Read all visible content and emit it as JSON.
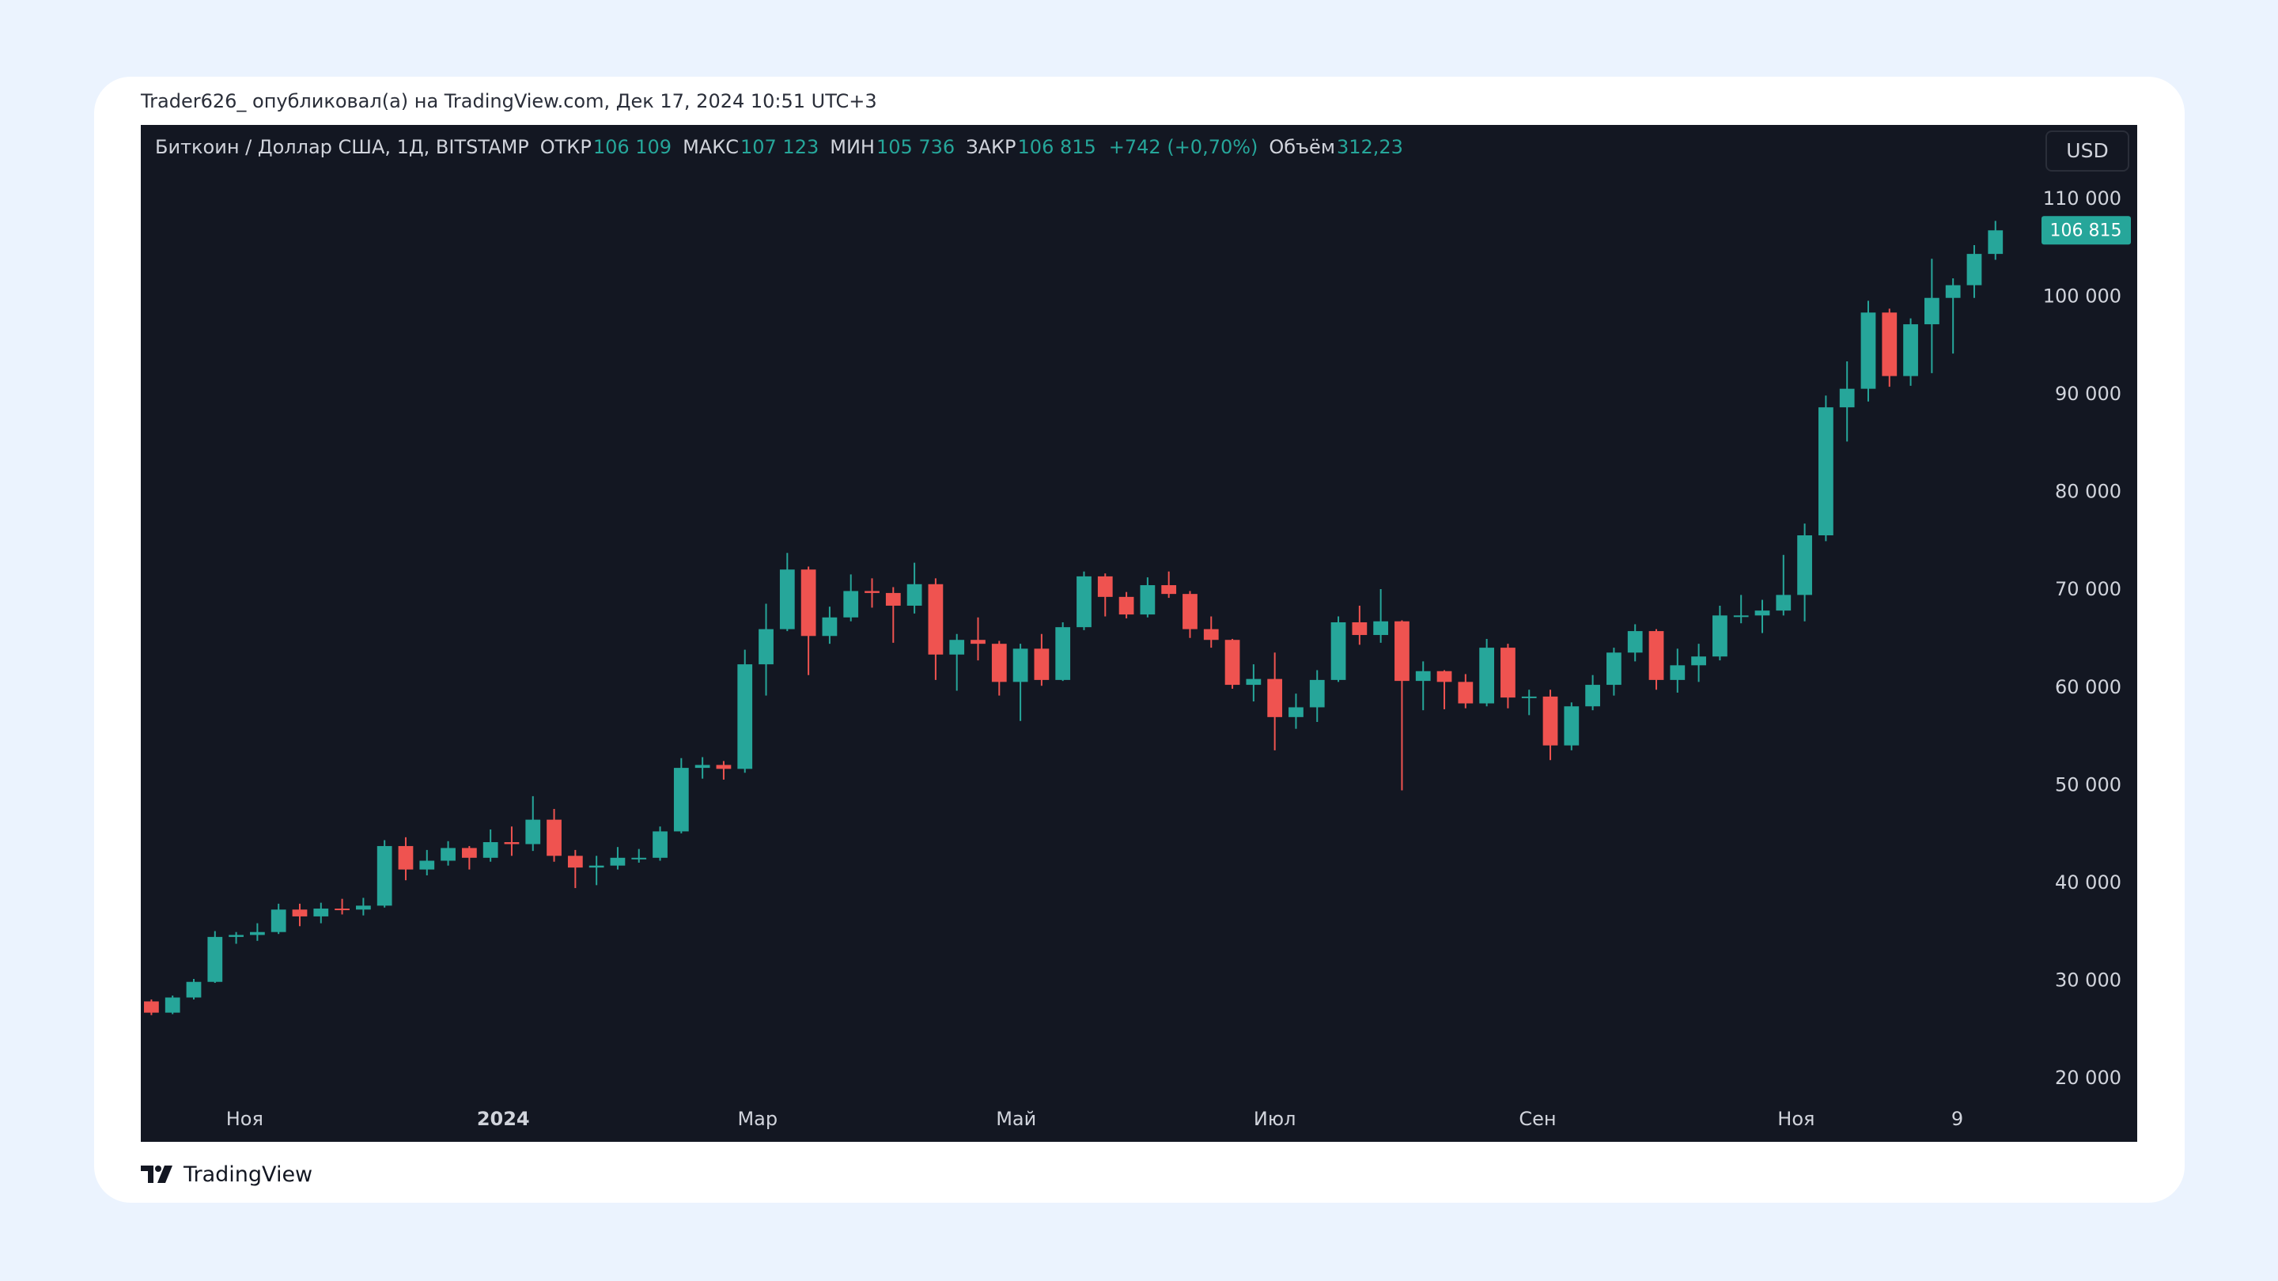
{
  "header": {
    "byline": "Trader626_ опубликовал(а) на TradingView.com, Дек 17, 2024 10:51 UTC+3"
  },
  "chart_data": {
    "type": "candlestick",
    "symbol": "Биткоин / Доллар США, 1Д, BITSTAMP",
    "legend_items": [
      {
        "label": "ОТКР",
        "value": "106 109"
      },
      {
        "label": "МАКС",
        "value": "107 123"
      },
      {
        "label": "МИН",
        "value": "105 736"
      },
      {
        "label": "ЗАКР",
        "value": "106 815"
      }
    ],
    "change": "+742 (+0,70%)",
    "volume": {
      "label": "Объём",
      "value": "312,23"
    },
    "currency": "USD",
    "up_color": "#26a69a",
    "down_color": "#ef5350",
    "open": [
      27900,
      26750,
      28300,
      29900,
      34500,
      34700,
      35000,
      37300,
      36600,
      37400,
      37300,
      37700,
      43800,
      41400,
      42300,
      43600,
      42600,
      44200,
      44000,
      46500,
      42800,
      41600,
      41800,
      42600,
      42600,
      45300,
      51800,
      52100,
      51700,
      62400,
      66000,
      72100,
      65300,
      67200,
      69900,
      69700,
      68400,
      70600,
      63400,
      64900,
      64500,
      60600,
      64000,
      60800,
      66200,
      71400,
      69300,
      67500,
      70500,
      69600,
      66000,
      64900,
      60300,
      60900,
      57000,
      58000,
      60800,
      66700,
      65400,
      66800,
      60700,
      61700,
      60600,
      58400,
      64100,
      59000,
      59100,
      54100,
      58100,
      60300,
      63600,
      65800,
      60800,
      62300,
      63200,
      67400,
      67400,
      67900,
      69500,
      75600,
      88700,
      90600,
      98400,
      91900,
      97200,
      99900,
      101200,
      104400
    ],
    "high": [
      28100,
      28500,
      30200,
      35100,
      35000,
      35900,
      37900,
      37900,
      38000,
      38400,
      38500,
      44400,
      44700,
      43400,
      44300,
      43800,
      45500,
      45800,
      48900,
      47600,
      43400,
      42800,
      43700,
      43500,
      45800,
      52800,
      52900,
      52500,
      63900,
      68600,
      73800,
      72400,
      68300,
      71600,
      71200,
      70300,
      72800,
      71200,
      65500,
      67200,
      64800,
      64500,
      65500,
      66700,
      71900,
      71700,
      69800,
      71300,
      71900,
      69900,
      67300,
      65000,
      62400,
      63600,
      59400,
      61800,
      67300,
      68400,
      70100,
      66900,
      62700,
      61800,
      61400,
      65000,
      64500,
      59800,
      59800,
      58500,
      61300,
      64100,
      66500,
      66000,
      64000,
      64500,
      68400,
      69500,
      69000,
      73600,
      76800,
      89900,
      93400,
      99600,
      98800,
      97800,
      103900,
      101900,
      105300,
      107780
    ],
    "low": [
      26500,
      26600,
      28100,
      29800,
      33800,
      34100,
      34800,
      35600,
      35900,
      36800,
      36700,
      37500,
      40300,
      40800,
      41800,
      41400,
      42200,
      42800,
      43300,
      42200,
      39500,
      39800,
      41400,
      42100,
      42300,
      45100,
      50700,
      50600,
      51300,
      59200,
      65800,
      61300,
      64500,
      66800,
      68200,
      64600,
      67600,
      60800,
      59700,
      62800,
      59200,
      56600,
      60200,
      60700,
      65900,
      67300,
      67100,
      67200,
      69200,
      65100,
      64100,
      59900,
      58600,
      53600,
      55800,
      56500,
      60600,
      64400,
      64600,
      49500,
      57700,
      57800,
      57900,
      58100,
      57900,
      57200,
      52600,
      53600,
      57700,
      59200,
      62700,
      59800,
      59500,
      60600,
      62800,
      66600,
      65600,
      67400,
      66800,
      75000,
      85200,
      89300,
      90800,
      90900,
      92200,
      94200,
      99900,
      103800
    ],
    "close": [
      26750,
      28300,
      29900,
      34500,
      34700,
      35000,
      37300,
      36600,
      37400,
      37300,
      37700,
      43800,
      41400,
      42300,
      43600,
      42600,
      44200,
      44000,
      46500,
      42800,
      41600,
      41800,
      42600,
      42600,
      45300,
      51800,
      52100,
      51700,
      62400,
      66000,
      72100,
      65300,
      67200,
      69900,
      69700,
      68400,
      70600,
      63400,
      64900,
      64500,
      60600,
      64000,
      60800,
      66200,
      71400,
      69300,
      67500,
      70500,
      69600,
      66000,
      64900,
      60300,
      60900,
      57000,
      58000,
      60800,
      66700,
      65400,
      66800,
      60700,
      61700,
      60600,
      58400,
      64100,
      59000,
      59100,
      54100,
      58100,
      60300,
      63600,
      65800,
      60800,
      62300,
      63200,
      67400,
      67400,
      67900,
      69500,
      75600,
      88700,
      90600,
      98400,
      91900,
      97200,
      99900,
      101200,
      104400,
      106815
    ],
    "xlim": [
      -0.5,
      88.8
    ],
    "xticks": [
      {
        "value": 4.4,
        "label": "Ноя"
      },
      {
        "value": 16.6,
        "label": "2024"
      },
      {
        "value": 28.6,
        "label": "Мар"
      },
      {
        "value": 40.8,
        "label": "Май"
      },
      {
        "value": 53,
        "label": "Июл"
      },
      {
        "value": 65.4,
        "label": "Сен"
      },
      {
        "value": 77.6,
        "label": "Ноя"
      },
      {
        "value": 85.2,
        "label": "9"
      }
    ],
    "ylim": [
      17900,
      117600
    ],
    "yticks": [
      {
        "value": 20000,
        "label": "20 000"
      },
      {
        "value": 30000,
        "label": "30 000"
      },
      {
        "value": 40000,
        "label": "40 000"
      },
      {
        "value": 50000,
        "label": "50 000"
      },
      {
        "value": 60000,
        "label": "60 000"
      },
      {
        "value": 70000,
        "label": "70 000"
      },
      {
        "value": 80000,
        "label": "80 000"
      },
      {
        "value": 90000,
        "label": "90 000"
      },
      {
        "value": 100000,
        "label": "100 000"
      },
      {
        "value": 110000,
        "label": "110 000"
      }
    ],
    "price_tag": {
      "value": 106815,
      "label": "106 815"
    },
    "grid": false
  },
  "footer": {
    "brand": "TradingView"
  }
}
